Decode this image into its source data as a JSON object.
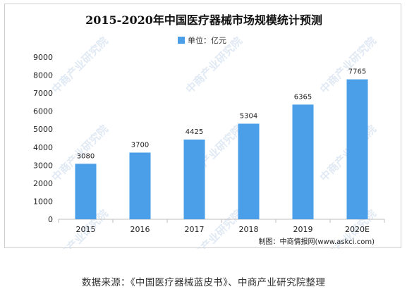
{
  "chart_data": {
    "type": "bar",
    "title": "2015-2020年中国医疗器械市场规模统计预测",
    "legend": [
      "单位：亿元"
    ],
    "legend_position": "top-center",
    "categories": [
      "2015",
      "2016",
      "2017",
      "2018",
      "2019",
      "2020E"
    ],
    "series": [
      {
        "name": "单位：亿元",
        "values": [
          3080,
          3700,
          4425,
          5304,
          6365,
          7765
        ]
      }
    ],
    "data_labels": [
      "3080",
      "3700",
      "4425",
      "5304",
      "6365",
      "7765"
    ],
    "ylim": [
      0,
      9000
    ],
    "yticks": [
      0,
      1000,
      2000,
      3000,
      4000,
      5000,
      6000,
      7000,
      8000,
      9000
    ],
    "grid": false,
    "colors": {
      "bar": "#4a9fe8",
      "axis": "#bfbfbf"
    }
  },
  "credit": "制图：中商情报网(www.askci.com)",
  "watermark": "中商产业研究院",
  "source_note": "数据来源：《中国医疗器械蓝皮书》、中商产业研究院整理"
}
